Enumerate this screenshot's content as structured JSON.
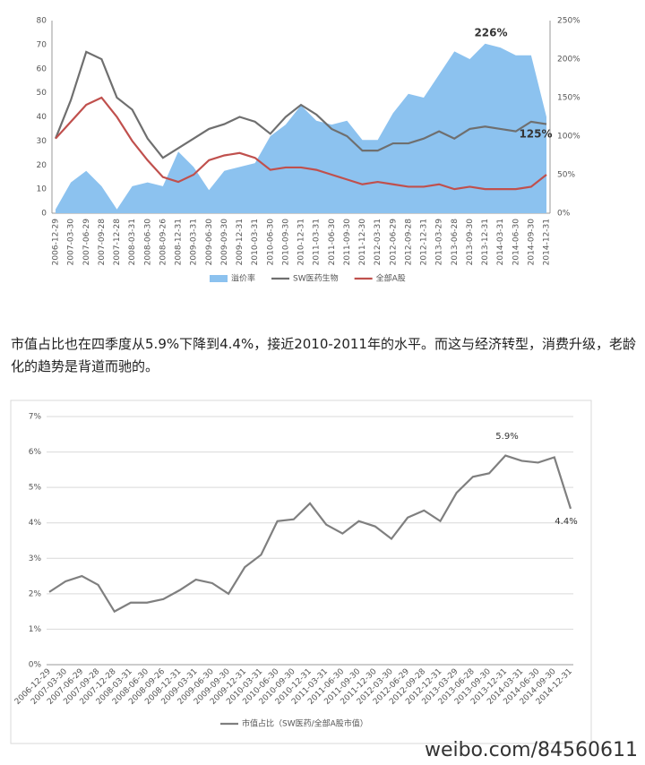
{
  "chart_data": [
    {
      "type": "combo",
      "categories": [
        "2006-12-29",
        "2007-03-30",
        "2007-06-29",
        "2007-09-28",
        "2007-12-28",
        "2008-03-31",
        "2008-06-30",
        "2008-09-26",
        "2008-12-31",
        "2009-03-31",
        "2009-06-30",
        "2009-09-30",
        "2009-12-31",
        "2010-03-31",
        "2010-06-30",
        "2010-09-30",
        "2010-12-31",
        "2011-03-31",
        "2011-06-30",
        "2011-09-30",
        "2011-12-30",
        "2012-03-31",
        "2012-06-29",
        "2012-09-28",
        "2012-12-31",
        "2013-03-29",
        "2013-06-28",
        "2013-09-30",
        "2013-12-31",
        "2014-03-31",
        "2014-06-30",
        "2014-09-30",
        "2014-12-31"
      ],
      "series": [
        {
          "name": "溢价率",
          "type": "area",
          "axis": "y2",
          "color": "#8cc2ef",
          "values": [
            5,
            40,
            55,
            35,
            5,
            35,
            40,
            35,
            80,
            60,
            30,
            55,
            60,
            65,
            100,
            115,
            140,
            120,
            115,
            120,
            95,
            95,
            130,
            155,
            150,
            180,
            210,
            200,
            220,
            215,
            205,
            205,
            125
          ]
        },
        {
          "name": "SW医药生物",
          "type": "line",
          "color": "#6f6f6f",
          "values": [
            31,
            47,
            67,
            64,
            48,
            43,
            31,
            23,
            27,
            31,
            35,
            37,
            40,
            38,
            33,
            40,
            45,
            41,
            35,
            32,
            26,
            26,
            29,
            29,
            31,
            34,
            31,
            35,
            36,
            35,
            34,
            38,
            37
          ]
        },
        {
          "name": "全部A股",
          "type": "line",
          "color": "#c0504d",
          "values": [
            31,
            38,
            45,
            48,
            40,
            30,
            22,
            15,
            13,
            16,
            22,
            24,
            25,
            23,
            18,
            19,
            19,
            18,
            16,
            14,
            12,
            13,
            12,
            11,
            11,
            12,
            10,
            11,
            10,
            10,
            10,
            11,
            16
          ]
        }
      ],
      "ylim": [
        0,
        80
      ],
      "yticks": [
        0,
        10,
        20,
        30,
        40,
        50,
        60,
        70,
        80
      ],
      "y2lim": [
        0,
        250
      ],
      "y2ticks": [
        {
          "value": 0,
          "label": "0%"
        },
        {
          "value": 50,
          "label": "50%"
        },
        {
          "value": 100,
          "label": "100%"
        },
        {
          "value": 150,
          "label": "150%"
        },
        {
          "value": 200,
          "label": "200%"
        },
        {
          "value": 250,
          "label": "250%"
        }
      ],
      "annotations": [
        "226%",
        "125%"
      ],
      "grid": false,
      "legend": "bottom"
    },
    {
      "type": "line",
      "categories": [
        "2006-12-29",
        "2007-03-30",
        "2007-06-29",
        "2007-09-28",
        "2007-12-28",
        "2008-03-31",
        "2008-06-30",
        "2008-09-26",
        "2008-12-31",
        "2009-03-31",
        "2009-06-30",
        "2009-09-30",
        "2009-12-31",
        "2010-03-31",
        "2010-06-30",
        "2010-09-30",
        "2010-12-31",
        "2011-03-31",
        "2011-06-30",
        "2011-09-30",
        "2011-12-30",
        "2012-03-30",
        "2012-06-29",
        "2012-09-28",
        "2012-12-31",
        "2013-03-29",
        "2013-06-28",
        "2013-09-30",
        "2013-12-31",
        "2014-03-31",
        "2014-06-30",
        "2014-09-30",
        "2014-12-31"
      ],
      "series": [
        {
          "name": "市值占比（SW医药/全部A股市值）",
          "type": "line",
          "color": "#7f7f7f",
          "values": [
            2.05,
            2.35,
            2.5,
            2.25,
            1.5,
            1.75,
            1.75,
            1.85,
            2.1,
            2.4,
            2.3,
            2.0,
            2.75,
            3.1,
            4.05,
            4.1,
            4.55,
            3.95,
            3.7,
            4.05,
            3.9,
            3.55,
            4.15,
            4.35,
            4.05,
            4.85,
            5.3,
            5.4,
            5.9,
            5.75,
            5.7,
            5.85,
            4.4
          ]
        }
      ],
      "ylim": [
        0,
        7
      ],
      "yticks": [
        {
          "value": 0,
          "label": "0%"
        },
        {
          "value": 1,
          "label": "1%"
        },
        {
          "value": 2,
          "label": "2%"
        },
        {
          "value": 3,
          "label": "3%"
        },
        {
          "value": 4,
          "label": "4%"
        },
        {
          "value": 5,
          "label": "5%"
        },
        {
          "value": 6,
          "label": "6%"
        },
        {
          "value": 7,
          "label": "7%"
        }
      ],
      "annotations": [
        "5.9%",
        "4.4%"
      ],
      "grid": true,
      "legend": "bottom"
    }
  ],
  "text": "市值占比也在四季度从5.9%下降到4.4%，接近2010-2011年的水平。而这与经济转型，消费升级，老龄化的趋势是背道而驰的。",
  "watermark": "weibo.com/84560611"
}
